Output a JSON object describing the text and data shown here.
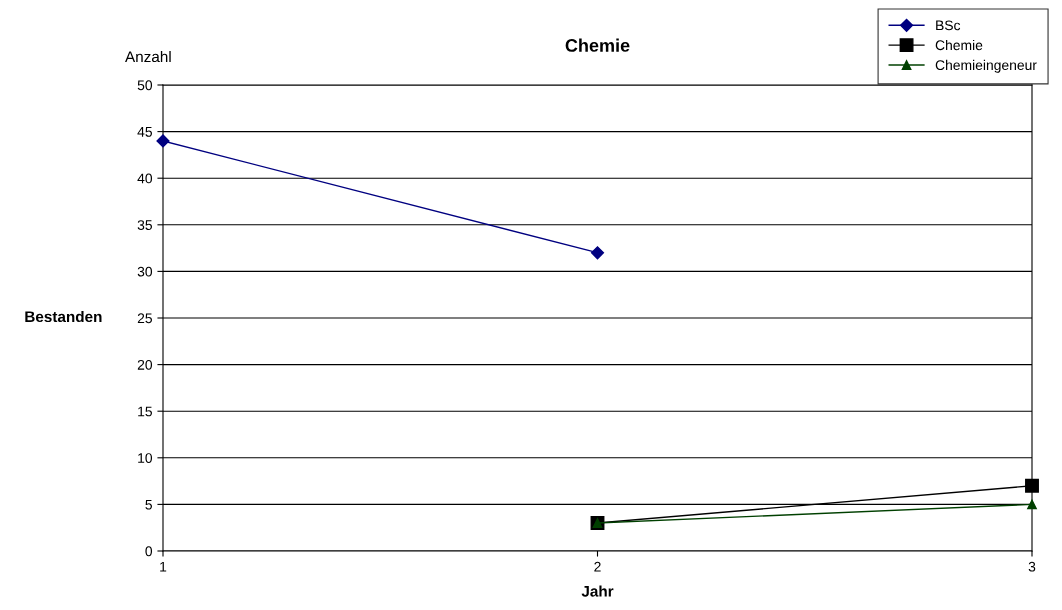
{
  "chart_data": {
    "type": "line",
    "title": "Chemie",
    "xlabel": "Jahr",
    "ylabel": "Bestanden",
    "annotations": [
      "Anzahl"
    ],
    "x": [
      1,
      2,
      3
    ],
    "xlim": [
      1,
      3
    ],
    "xticks": [
      1,
      2,
      3
    ],
    "ylim": [
      0,
      50
    ],
    "yticks": [
      0,
      5,
      10,
      15,
      20,
      25,
      30,
      35,
      40,
      45,
      50
    ],
    "grid": "y",
    "legend": "top right",
    "series": [
      {
        "name": "BSc",
        "color": "#000080",
        "marker": "diamond",
        "values": [
          44,
          32,
          null
        ]
      },
      {
        "name": "Chemie",
        "color": "#000000",
        "marker": "square",
        "values": [
          null,
          3,
          7
        ]
      },
      {
        "name": "Chemieingeneur",
        "color": "#004000",
        "marker": "triangle",
        "values": [
          null,
          3,
          5
        ]
      }
    ]
  }
}
